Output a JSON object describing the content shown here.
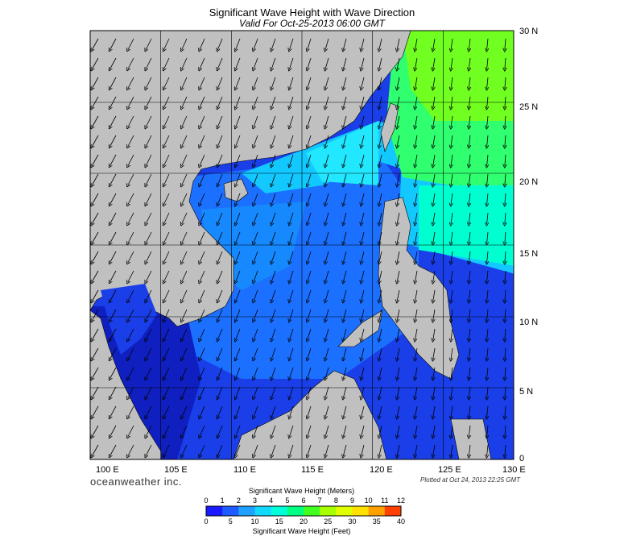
{
  "title": "Significant Wave Height with Wave Direction",
  "subtitle": "Valid For Oct-25-2013 06:00 GMT",
  "lon_labels": [
    "100 E",
    "105 E",
    "110 E",
    "115 E",
    "120 E",
    "125 E",
    "130 E"
  ],
  "lat_labels": [
    "0",
    "5 N",
    "10 N",
    "15 N",
    "20 N",
    "25 N",
    "30 N"
  ],
  "logo": "oceanweather inc.",
  "plotted": "Plotted at Oct 24, 2013 22:25 GMT",
  "colorbar": {
    "title_meters": "Significant Wave Height (Meters)",
    "title_feet": "Significant Wave Height (Feet)",
    "meters_ticks": [
      "0",
      "1",
      "2",
      "3",
      "4",
      "5",
      "6",
      "7",
      "8",
      "9",
      "10",
      "11",
      "12"
    ],
    "feet_ticks": [
      "0",
      "5",
      "10",
      "15",
      "20",
      "25",
      "30",
      "35",
      "40"
    ],
    "colors": [
      "#1a1aff",
      "#1e5cff",
      "#1fa0ff",
      "#10d8ff",
      "#00ffd8",
      "#00ff80",
      "#40ff20",
      "#a8ff00",
      "#e0ff00",
      "#ffe000",
      "#ffa000",
      "#ff4000"
    ]
  },
  "colors": {
    "land": "#c0c0c0",
    "deep_blue": "#1430e0",
    "mid_blue": "#1878ff",
    "cyan": "#10d8ff",
    "green": "#40f040"
  }
}
